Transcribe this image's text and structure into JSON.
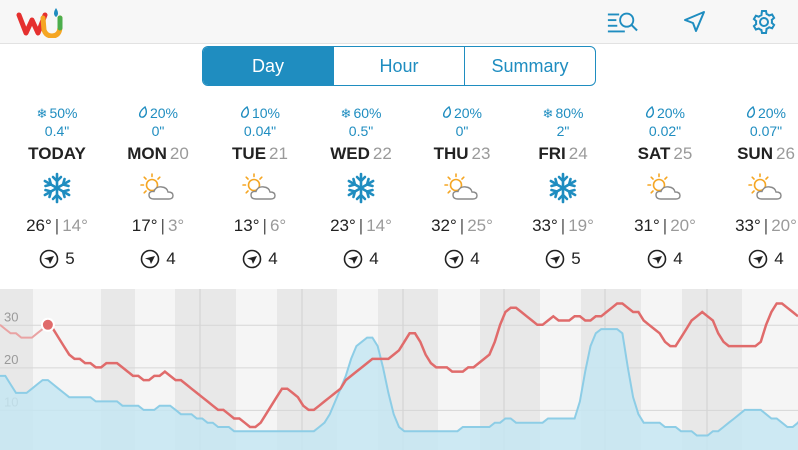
{
  "app": {
    "logo": "wu-logo"
  },
  "toolbar": {
    "icons": [
      "search-list-icon",
      "location-arrow-icon",
      "gear-icon"
    ]
  },
  "tabs": [
    {
      "label": "Day",
      "active": true
    },
    {
      "label": "Hour",
      "active": false
    },
    {
      "label": "Summary",
      "active": false
    }
  ],
  "days": [
    {
      "precip_icon": "snowflake-icon",
      "precip_pct": "50%",
      "amount": "0.4\"",
      "name": "TODAY",
      "num": "",
      "weather": "snow-icon",
      "hi": "26°",
      "lo": "14°",
      "wind_speed": "5"
    },
    {
      "precip_icon": "raindrop-icon",
      "precip_pct": "20%",
      "amount": "0\"",
      "name": "MON",
      "num": "20",
      "weather": "partly-cloudy-icon",
      "hi": "17°",
      "lo": "3°",
      "wind_speed": "4"
    },
    {
      "precip_icon": "raindrop-icon",
      "precip_pct": "10%",
      "amount": "0.04\"",
      "name": "TUE",
      "num": "21",
      "weather": "partly-cloudy-icon",
      "hi": "13°",
      "lo": "6°",
      "wind_speed": "4"
    },
    {
      "precip_icon": "snowflake-icon",
      "precip_pct": "60%",
      "amount": "0.5\"",
      "name": "WED",
      "num": "22",
      "weather": "snow-icon",
      "hi": "23°",
      "lo": "14°",
      "wind_speed": "4"
    },
    {
      "precip_icon": "raindrop-icon",
      "precip_pct": "20%",
      "amount": "0\"",
      "name": "THU",
      "num": "23",
      "weather": "partly-cloudy-icon",
      "hi": "32°",
      "lo": "25°",
      "wind_speed": "4"
    },
    {
      "precip_icon": "snowflake-icon",
      "precip_pct": "80%",
      "amount": "2\"",
      "name": "FRI",
      "num": "24",
      "weather": "snow-icon",
      "hi": "33°",
      "lo": "19°",
      "wind_speed": "5"
    },
    {
      "precip_icon": "raindrop-icon",
      "precip_pct": "20%",
      "amount": "0.02\"",
      "name": "SAT",
      "num": "25",
      "weather": "partly-cloudy-icon",
      "hi": "31°",
      "lo": "20°",
      "wind_speed": "4"
    },
    {
      "precip_icon": "raindrop-icon",
      "precip_pct": "20%",
      "amount": "0.07\"",
      "name": "SUN",
      "num": "26",
      "weather": "partly-cloudy-icon",
      "hi": "33°",
      "lo": "20°",
      "wind_speed": "4"
    }
  ],
  "colors": {
    "accent": "#1f8dc0",
    "temp_line": "#e06b6b",
    "precip_fill": "#c5e6f2",
    "precip_line": "#8dcde6",
    "day_muted": "#9a9a9a"
  },
  "chart_data": {
    "type": "line",
    "yticks": [
      "30",
      "20",
      "10"
    ],
    "ylim": [
      0,
      35
    ],
    "grid": true,
    "series": [
      {
        "values": [
          28,
          27,
          26,
          26,
          25,
          25,
          25,
          26,
          27,
          28,
          27,
          25,
          23,
          21,
          20,
          20,
          19,
          19,
          18,
          18,
          19,
          19,
          19,
          18,
          17,
          16,
          16,
          15,
          15,
          16,
          16,
          17,
          16,
          15,
          15,
          14,
          13,
          12,
          11,
          10,
          9,
          8,
          8,
          7,
          6,
          6,
          5,
          4,
          4,
          5,
          7,
          9,
          11,
          13,
          13,
          12,
          11,
          9,
          8,
          8,
          9,
          10,
          11,
          12,
          13,
          15,
          16,
          17,
          18,
          19,
          20,
          20,
          20,
          20,
          21,
          22,
          24,
          26,
          26,
          24,
          21,
          19,
          18,
          18,
          18,
          17,
          17,
          17,
          18,
          18,
          19,
          20,
          21,
          24,
          28,
          31,
          32,
          32,
          31,
          30,
          29,
          28,
          28,
          29,
          30,
          29,
          29,
          29,
          30,
          30,
          29,
          29,
          30,
          30,
          31,
          32,
          33,
          33,
          32,
          31,
          31,
          29,
          28,
          27,
          26,
          24,
          23,
          23,
          25,
          27,
          29,
          30,
          31,
          30,
          29,
          26,
          24,
          23,
          23,
          23,
          23,
          23,
          23,
          24,
          28,
          31,
          33,
          33,
          32,
          31,
          30
        ]
      },
      {
        "values": [
          16,
          16,
          14,
          12,
          12,
          12,
          13,
          14,
          15,
          15,
          14,
          13,
          12,
          11,
          11,
          11,
          11,
          11,
          10,
          10,
          10,
          10,
          10,
          9,
          9,
          9,
          9,
          8,
          8,
          8,
          9,
          9,
          9,
          8,
          7,
          7,
          7,
          6,
          6,
          5,
          5,
          4,
          4,
          4,
          3,
          3,
          3,
          3,
          3,
          3,
          3,
          3,
          3,
          3,
          3,
          3,
          3,
          3,
          3,
          3,
          4,
          5,
          7,
          10,
          13,
          16,
          20,
          23,
          24,
          25,
          25,
          23,
          18,
          12,
          7,
          4,
          3,
          3,
          3,
          3,
          3,
          3,
          3,
          3,
          3,
          3,
          3,
          4,
          4,
          4,
          4,
          4,
          4,
          5,
          5,
          6,
          6,
          5,
          5,
          5,
          5,
          5,
          5,
          6,
          6,
          6,
          6,
          6,
          6,
          10,
          17,
          23,
          26,
          27,
          27,
          27,
          27,
          26,
          18,
          11,
          7,
          5,
          5,
          5,
          5,
          4,
          4,
          4,
          3,
          3,
          3,
          2,
          2,
          2,
          3,
          3,
          4,
          5,
          6,
          7,
          8,
          8,
          8,
          8,
          7,
          6,
          6,
          5,
          4,
          4,
          5,
          7
        ]
      }
    ]
  }
}
